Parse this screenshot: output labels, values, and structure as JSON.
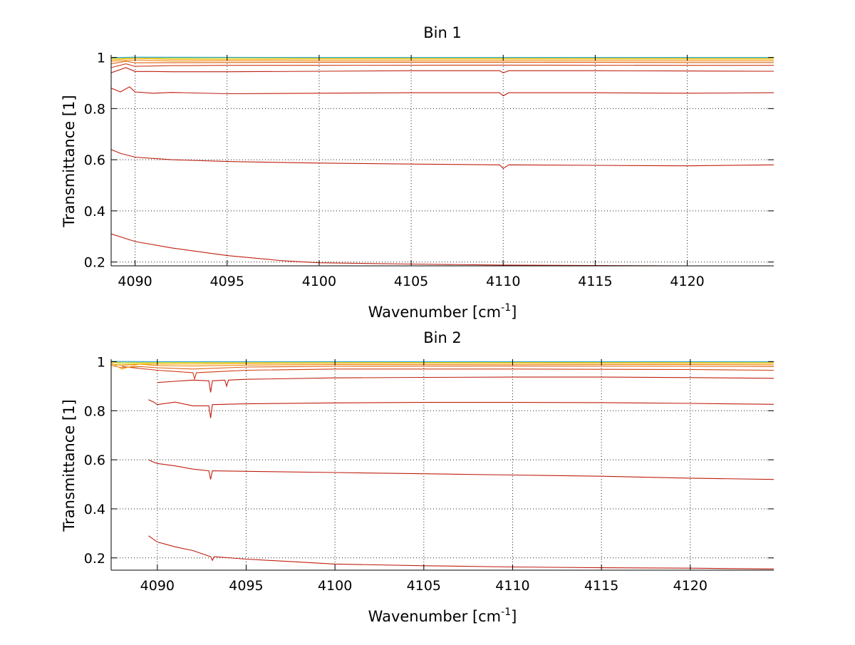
{
  "chart_data": [
    {
      "type": "line",
      "title": "Bin 1",
      "xlabel_base": "Wavenumber [cm",
      "xlabel_sup": "-1",
      "xlabel_tail": "]",
      "ylabel": "Transmittance [1]",
      "xlim": [
        4088.7,
        4124.7
      ],
      "ylim": [
        0.185,
        1.01
      ],
      "xticks": [
        4090,
        4095,
        4100,
        4105,
        4110,
        4115,
        4120
      ],
      "xtick_labels": [
        "4090",
        "4095",
        "4100",
        "4105",
        "4110",
        "4115",
        "4120"
      ],
      "yticks": [
        0.2,
        0.4,
        0.6,
        0.8,
        1
      ],
      "ytick_labels": [
        "0.2",
        "0.4",
        "0.6",
        "0.8",
        "1"
      ],
      "grid": true,
      "series": [
        {
          "color": "#bf1f10",
          "x": [
            4088.7,
            4090,
            4092,
            4095,
            4098,
            4100,
            4105,
            4110,
            4115,
            4120,
            4124.7
          ],
          "y": [
            0.31,
            0.28,
            0.255,
            0.225,
            0.205,
            0.197,
            0.192,
            0.188,
            0.186,
            0.185,
            0.185
          ]
        },
        {
          "color": "#bf1f10",
          "x": [
            4088.7,
            4089.2,
            4090,
            4091,
            4092,
            4095,
            4100,
            4105,
            4109.8,
            4110,
            4110.3,
            4115,
            4120,
            4124.7
          ],
          "y": [
            0.64,
            0.625,
            0.61,
            0.605,
            0.6,
            0.593,
            0.587,
            0.583,
            0.58,
            0.566,
            0.58,
            0.578,
            0.576,
            0.58
          ]
        },
        {
          "color": "#bf1f10",
          "x": [
            4088.7,
            4089.2,
            4089.7,
            4090,
            4091,
            4092,
            4095,
            4100,
            4105,
            4109.8,
            4110,
            4110.3,
            4115,
            4120,
            4124.7
          ],
          "y": [
            0.88,
            0.865,
            0.885,
            0.865,
            0.86,
            0.863,
            0.858,
            0.86,
            0.862,
            0.862,
            0.85,
            0.862,
            0.862,
            0.86,
            0.862
          ]
        },
        {
          "color": "#bf1f10",
          "x": [
            4088.7,
            4089.5,
            4090,
            4091,
            4092,
            4095,
            4100,
            4105,
            4109.8,
            4110,
            4110.3,
            4115,
            4120,
            4124.7
          ],
          "y": [
            0.94,
            0.96,
            0.945,
            0.945,
            0.944,
            0.944,
            0.946,
            0.948,
            0.948,
            0.94,
            0.948,
            0.948,
            0.947,
            0.946
          ]
        },
        {
          "color": "#cf3a10",
          "x": [
            4088.7,
            4089.5,
            4090,
            4092,
            4095,
            4100,
            4110,
            4120,
            4124.7
          ],
          "y": [
            0.96,
            0.975,
            0.965,
            0.968,
            0.969,
            0.969,
            0.97,
            0.969,
            0.969
          ]
        },
        {
          "color": "#df6010",
          "x": [
            4088.7,
            4089.5,
            4090,
            4095,
            4100,
            4110,
            4120,
            4124.7
          ],
          "y": [
            0.975,
            0.985,
            0.979,
            0.98,
            0.981,
            0.981,
            0.98,
            0.98
          ]
        },
        {
          "color": "#ef8a10",
          "x": [
            4088.7,
            4090,
            4092,
            4095,
            4100,
            4110,
            4120,
            4124.7
          ],
          "y": [
            0.985,
            0.99,
            0.986,
            0.987,
            0.987,
            0.987,
            0.987,
            0.987
          ]
        },
        {
          "color": "#f7b018",
          "x": [
            4088.7,
            4090,
            4092,
            4095,
            4100,
            4110,
            4120,
            4124.7
          ],
          "y": [
            0.99,
            0.996,
            0.992,
            0.992,
            0.993,
            0.993,
            0.993,
            0.993
          ]
        },
        {
          "color": "#e8d020",
          "x": [
            4088.7,
            4090,
            4092,
            4095,
            4100,
            4110,
            4120,
            4124.7
          ],
          "y": [
            0.995,
            0.998,
            0.996,
            0.997,
            0.997,
            0.997,
            0.997,
            0.997
          ]
        },
        {
          "color": "#a8cf30",
          "x": [
            4088.7,
            4090,
            4092,
            4100,
            4110,
            4120,
            4124.7
          ],
          "y": [
            0.997,
            1.0,
            0.998,
            0.999,
            0.999,
            0.999,
            0.999
          ]
        },
        {
          "color": "#30a8d8",
          "x": [
            4088.7,
            4090,
            4100,
            4110,
            4120,
            4124.7
          ],
          "y": [
            0.999,
            1.001,
            1.0,
            1.0,
            1.0,
            1.0
          ]
        }
      ]
    },
    {
      "type": "line",
      "title": "Bin 2",
      "xlabel_base": "Wavenumber [cm",
      "xlabel_sup": "-1",
      "xlabel_tail": "]",
      "ylabel": "Transmittance [1]",
      "xlim": [
        4087.4,
        4124.7
      ],
      "ylim": [
        0.15,
        1.01
      ],
      "xticks": [
        4090,
        4095,
        4100,
        4105,
        4110,
        4115,
        4120
      ],
      "xtick_labels": [
        "4090",
        "4095",
        "4100",
        "4105",
        "4110",
        "4115",
        "4120"
      ],
      "yticks": [
        0.2,
        0.4,
        0.6,
        0.8,
        1
      ],
      "ytick_labels": [
        "0.2",
        "0.4",
        "0.6",
        "0.8",
        "1"
      ],
      "grid": true,
      "series": [
        {
          "color": "#bf1f10",
          "x": [
            4089.5,
            4090,
            4091,
            4092,
            4093,
            4093.1,
            4093.2,
            4095,
            4100,
            4105,
            4110,
            4115,
            4120,
            4124.7
          ],
          "y": [
            0.29,
            0.265,
            0.245,
            0.23,
            0.205,
            0.19,
            0.205,
            0.195,
            0.175,
            0.168,
            0.163,
            0.16,
            0.158,
            0.155
          ]
        },
        {
          "color": "#bf1f10",
          "x": [
            4089.5,
            4089.8,
            4090,
            4091,
            4092,
            4092.9,
            4093,
            4093.1,
            4095,
            4100,
            4105,
            4110,
            4115,
            4120,
            4124.7
          ],
          "y": [
            0.6,
            0.59,
            0.585,
            0.575,
            0.562,
            0.555,
            0.52,
            0.555,
            0.553,
            0.548,
            0.543,
            0.538,
            0.533,
            0.525,
            0.52
          ]
        },
        {
          "color": "#bf1f10",
          "x": [
            4089.5,
            4089.8,
            4090,
            4091,
            4092,
            4092.9,
            4093,
            4093.1,
            4095,
            4100,
            4105,
            4110,
            4115,
            4120,
            4124.7
          ],
          "y": [
            0.845,
            0.835,
            0.825,
            0.835,
            0.82,
            0.82,
            0.77,
            0.825,
            0.828,
            0.832,
            0.834,
            0.834,
            0.833,
            0.83,
            0.826
          ]
        },
        {
          "color": "#bf1f10",
          "x": [
            4090,
            4091,
            4092,
            4092.9,
            4093,
            4093.1,
            4093.8,
            4093.9,
            4094,
            4095,
            4100,
            4105,
            4110,
            4115,
            4120,
            4124.7
          ],
          "y": [
            0.915,
            0.92,
            0.925,
            0.922,
            0.875,
            0.922,
            0.925,
            0.9,
            0.925,
            0.928,
            0.934,
            0.936,
            0.937,
            0.937,
            0.935,
            0.932
          ]
        },
        {
          "color": "#cf3a10",
          "x": [
            4088,
            4090,
            4091,
            4092,
            4092.1,
            4092.2,
            4093,
            4095,
            4100,
            4110,
            4120,
            4124.7
          ],
          "y": [
            0.98,
            0.965,
            0.96,
            0.955,
            0.93,
            0.955,
            0.958,
            0.965,
            0.97,
            0.97,
            0.968,
            0.965
          ]
        },
        {
          "color": "#df6010",
          "x": [
            4087.4,
            4088,
            4089,
            4090,
            4092,
            4095,
            4100,
            4110,
            4120,
            4124.7
          ],
          "y": [
            0.985,
            0.975,
            0.98,
            0.975,
            0.97,
            0.978,
            0.981,
            0.982,
            0.981,
            0.98
          ]
        },
        {
          "color": "#ef8a10",
          "x": [
            4087.4,
            4088,
            4089,
            4090,
            4092,
            4095,
            4100,
            4110,
            4120,
            4124.7
          ],
          "y": [
            0.99,
            0.985,
            0.99,
            0.984,
            0.982,
            0.986,
            0.988,
            0.988,
            0.988,
            0.987
          ]
        },
        {
          "color": "#f7b018",
          "x": [
            4087.4,
            4088,
            4089,
            4090,
            4092,
            4095,
            4100,
            4110,
            4120,
            4124.7
          ],
          "y": [
            0.995,
            0.97,
            0.99,
            0.99,
            0.99,
            0.992,
            0.993,
            0.994,
            0.993,
            0.993
          ]
        },
        {
          "color": "#e8d020",
          "x": [
            4087.4,
            4088,
            4090,
            4092,
            4095,
            4100,
            4110,
            4120,
            4124.7
          ],
          "y": [
            0.998,
            0.99,
            0.995,
            0.995,
            0.996,
            0.997,
            0.997,
            0.997,
            0.997
          ]
        },
        {
          "color": "#a8cf30",
          "x": [
            4087.4,
            4088,
            4090,
            4095,
            4100,
            4110,
            4120,
            4124.7
          ],
          "y": [
            1.0,
            0.996,
            0.998,
            0.999,
            0.999,
            0.999,
            0.999,
            0.999
          ]
        },
        {
          "color": "#30a8d8",
          "x": [
            4087.4,
            4090,
            4100,
            4110,
            4120,
            4124.7
          ],
          "y": [
            1.001,
            1.0,
            1.0,
            1.0,
            1.0,
            1.0
          ]
        }
      ]
    }
  ]
}
